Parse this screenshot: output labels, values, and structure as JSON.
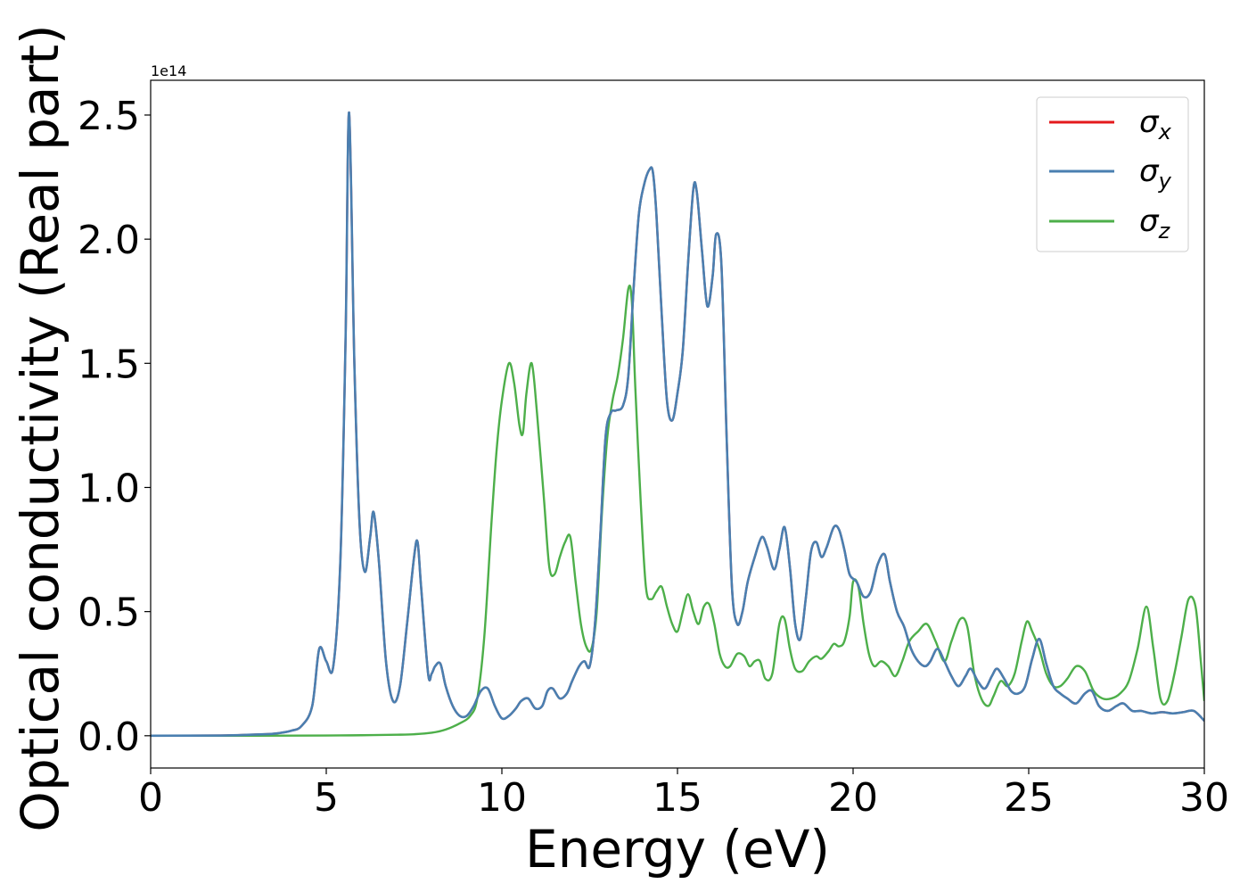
{
  "chart_data": {
    "type": "line",
    "xlabel": "Energy (eV)",
    "ylabel": "Optical conductivity (Real part)",
    "offset_label": "1e14",
    "xlim": [
      0,
      30
    ],
    "ylim": [
      -0.13,
      2.64
    ],
    "y_scale_factor": "1e14",
    "xticks": [
      0,
      5,
      10,
      15,
      20,
      25,
      30
    ],
    "xtick_labels": [
      "0",
      "5",
      "10",
      "15",
      "20",
      "25",
      "30"
    ],
    "yticks": [
      0.0,
      0.5,
      1.0,
      1.5,
      2.0,
      2.5
    ],
    "ytick_labels": [
      "0.0",
      "0.5",
      "1.0",
      "1.5",
      "2.0",
      "2.5"
    ],
    "grid": false,
    "legend_position": "top-right",
    "series": [
      {
        "name": "x",
        "color": "#e41a1c",
        "x": [
          0,
          2,
          3,
          3.5,
          4,
          4.3,
          4.6,
          4.8,
          5.0,
          5.2,
          5.4,
          5.55,
          5.65,
          5.8,
          5.95,
          6.1,
          6.25,
          6.35,
          6.5,
          6.7,
          6.9,
          7.1,
          7.3,
          7.5,
          7.6,
          7.7,
          7.9,
          8.0,
          8.1,
          8.25,
          8.4,
          8.6,
          8.8,
          9.0,
          9.2,
          9.4,
          9.6,
          9.8,
          10.0,
          10.2,
          10.4,
          10.55,
          10.75,
          10.95,
          11.15,
          11.3,
          11.45,
          11.65,
          11.85,
          12.0,
          12.2,
          12.35,
          12.5,
          12.65,
          12.8,
          12.95,
          13.1,
          13.25,
          13.45,
          13.6,
          13.75,
          13.9,
          14.05,
          14.2,
          14.3,
          14.4,
          14.55,
          14.7,
          14.85,
          15.0,
          15.15,
          15.3,
          15.45,
          15.55,
          15.7,
          15.85,
          16.0,
          16.1,
          16.25,
          16.4,
          16.55,
          16.7,
          16.85,
          17.0,
          17.2,
          17.4,
          17.55,
          17.75,
          17.9,
          18.05,
          18.2,
          18.35,
          18.5,
          18.65,
          18.8,
          18.95,
          19.1,
          19.25,
          19.45,
          19.6,
          19.75,
          19.9,
          20.1,
          20.3,
          20.5,
          20.7,
          20.9,
          21.05,
          21.25,
          21.45,
          21.65,
          21.85,
          22.05,
          22.2,
          22.4,
          22.6,
          22.8,
          23.0,
          23.2,
          23.35,
          23.55,
          23.75,
          23.95,
          24.1,
          24.3,
          24.5,
          24.7,
          24.9,
          25.1,
          25.3,
          25.5,
          25.7,
          25.9,
          26.1,
          26.35,
          26.6,
          26.8,
          27.0,
          27.25,
          27.5,
          27.7,
          27.95,
          28.2,
          28.5,
          28.8,
          29.1,
          29.4,
          29.7,
          30.0
        ],
        "values": [
          0,
          0.001,
          0.005,
          0.008,
          0.02,
          0.04,
          0.12,
          0.35,
          0.3,
          0.28,
          0.7,
          1.6,
          2.51,
          1.5,
          0.85,
          0.66,
          0.8,
          0.9,
          0.7,
          0.3,
          0.14,
          0.2,
          0.45,
          0.72,
          0.78,
          0.6,
          0.25,
          0.25,
          0.28,
          0.29,
          0.2,
          0.12,
          0.08,
          0.08,
          0.12,
          0.18,
          0.19,
          0.12,
          0.07,
          0.08,
          0.11,
          0.14,
          0.15,
          0.11,
          0.12,
          0.18,
          0.19,
          0.15,
          0.17,
          0.22,
          0.28,
          0.3,
          0.28,
          0.45,
          0.8,
          1.2,
          1.3,
          1.31,
          1.33,
          1.45,
          1.8,
          2.1,
          2.22,
          2.28,
          2.27,
          2.1,
          1.7,
          1.35,
          1.27,
          1.38,
          1.55,
          1.9,
          2.2,
          2.19,
          1.95,
          1.73,
          1.85,
          2.02,
          1.9,
          1.2,
          0.6,
          0.45,
          0.5,
          0.62,
          0.72,
          0.8,
          0.76,
          0.67,
          0.75,
          0.84,
          0.68,
          0.45,
          0.39,
          0.55,
          0.74,
          0.78,
          0.72,
          0.76,
          0.84,
          0.83,
          0.75,
          0.65,
          0.62,
          0.56,
          0.58,
          0.69,
          0.73,
          0.62,
          0.5,
          0.44,
          0.35,
          0.3,
          0.28,
          0.3,
          0.35,
          0.3,
          0.24,
          0.2,
          0.24,
          0.27,
          0.22,
          0.19,
          0.24,
          0.27,
          0.23,
          0.18,
          0.17,
          0.2,
          0.31,
          0.39,
          0.29,
          0.2,
          0.17,
          0.15,
          0.13,
          0.17,
          0.18,
          0.12,
          0.1,
          0.12,
          0.13,
          0.1,
          0.1,
          0.09,
          0.095,
          0.09,
          0.095,
          0.1,
          0.06
        ],
        "visible_under": "y"
      },
      {
        "name": "y",
        "color": "#4a7fb0",
        "same_as": "x"
      },
      {
        "name": "z",
        "color": "#4daf4a",
        "x": [
          0,
          3,
          5,
          6,
          7,
          7.5,
          8,
          8.4,
          8.8,
          9.1,
          9.3,
          9.5,
          9.7,
          9.85,
          10.0,
          10.2,
          10.35,
          10.5,
          10.6,
          10.7,
          10.85,
          11.0,
          11.2,
          11.35,
          11.5,
          11.65,
          11.8,
          11.95,
          12.1,
          12.25,
          12.4,
          12.55,
          12.7,
          12.85,
          13.0,
          13.15,
          13.3,
          13.45,
          13.6,
          13.7,
          13.8,
          13.95,
          14.1,
          14.25,
          14.4,
          14.55,
          14.7,
          14.85,
          15.0,
          15.15,
          15.3,
          15.45,
          15.6,
          15.75,
          15.9,
          16.05,
          16.2,
          16.35,
          16.5,
          16.7,
          16.9,
          17.05,
          17.2,
          17.35,
          17.5,
          17.7,
          17.9,
          18.05,
          18.2,
          18.35,
          18.55,
          18.75,
          18.95,
          19.1,
          19.3,
          19.45,
          19.6,
          19.75,
          19.9,
          20.0,
          20.15,
          20.3,
          20.45,
          20.6,
          20.8,
          21.0,
          21.2,
          21.4,
          21.6,
          21.85,
          22.1,
          22.35,
          22.6,
          22.8,
          23.05,
          23.25,
          23.45,
          23.65,
          23.85,
          24.0,
          24.2,
          24.4,
          24.6,
          24.8,
          24.95,
          25.1,
          25.3,
          25.5,
          25.7,
          25.9,
          26.1,
          26.35,
          26.6,
          26.85,
          27.1,
          27.35,
          27.6,
          27.85,
          28.1,
          28.35,
          28.55,
          28.75,
          28.95,
          29.15,
          29.35,
          29.55,
          29.75,
          29.9,
          30.0
        ],
        "values": [
          0,
          0,
          0.001,
          0.002,
          0.004,
          0.006,
          0.012,
          0.025,
          0.05,
          0.08,
          0.15,
          0.4,
          0.85,
          1.15,
          1.35,
          1.5,
          1.42,
          1.25,
          1.22,
          1.38,
          1.5,
          1.3,
          0.95,
          0.68,
          0.65,
          0.72,
          0.78,
          0.8,
          0.62,
          0.45,
          0.36,
          0.35,
          0.5,
          0.9,
          1.2,
          1.35,
          1.45,
          1.6,
          1.8,
          1.75,
          1.4,
          0.95,
          0.6,
          0.55,
          0.58,
          0.6,
          0.52,
          0.45,
          0.42,
          0.5,
          0.57,
          0.5,
          0.45,
          0.52,
          0.53,
          0.45,
          0.33,
          0.28,
          0.28,
          0.33,
          0.32,
          0.28,
          0.3,
          0.3,
          0.23,
          0.25,
          0.45,
          0.47,
          0.35,
          0.27,
          0.26,
          0.3,
          0.32,
          0.31,
          0.34,
          0.37,
          0.36,
          0.38,
          0.48,
          0.62,
          0.6,
          0.45,
          0.33,
          0.28,
          0.3,
          0.28,
          0.24,
          0.3,
          0.38,
          0.42,
          0.45,
          0.38,
          0.3,
          0.38,
          0.47,
          0.44,
          0.25,
          0.15,
          0.12,
          0.16,
          0.22,
          0.2,
          0.25,
          0.38,
          0.46,
          0.42,
          0.35,
          0.25,
          0.2,
          0.2,
          0.23,
          0.28,
          0.26,
          0.18,
          0.15,
          0.15,
          0.17,
          0.22,
          0.35,
          0.52,
          0.35,
          0.15,
          0.14,
          0.25,
          0.4,
          0.55,
          0.52,
          0.3,
          0.14
        ]
      }
    ]
  },
  "legend": {
    "items": [
      {
        "symbol": "σ",
        "sub": "x",
        "color": "#e41a1c"
      },
      {
        "symbol": "σ",
        "sub": "y",
        "color": "#4a7fb0"
      },
      {
        "symbol": "σ",
        "sub": "z",
        "color": "#4daf4a"
      }
    ]
  }
}
